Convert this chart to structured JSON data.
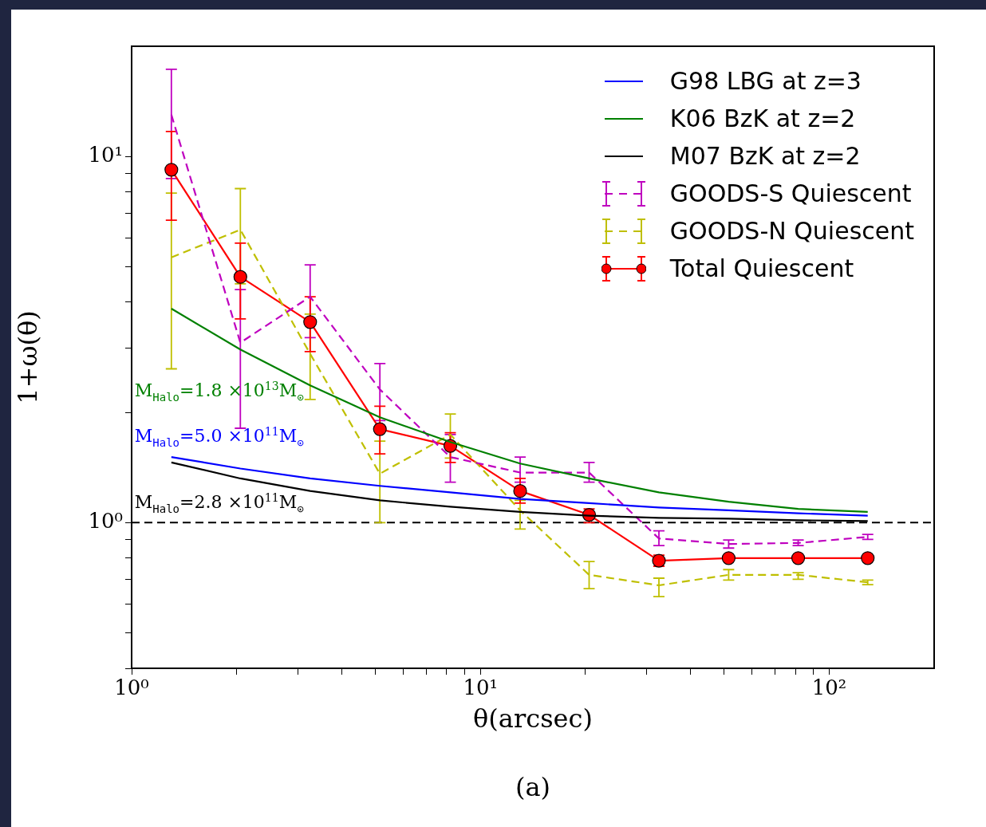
{
  "chart_data": {
    "type": "line",
    "xlabel": "θ(arcsec)",
    "ylabel": "1+ω(θ)",
    "log": "xy",
    "grid": false,
    "legend": "top right",
    "xlim": [
      1,
      200
    ],
    "ylim": [
      0.4,
      20
    ],
    "xticks": [
      {
        "value": 1,
        "label": "10⁰"
      },
      {
        "value": 2,
        "label": null
      },
      {
        "value": 3,
        "label": null
      },
      {
        "value": 4,
        "label": null
      },
      {
        "value": 5,
        "label": null
      },
      {
        "value": 6,
        "label": null
      },
      {
        "value": 7,
        "label": null
      },
      {
        "value": 8,
        "label": null
      },
      {
        "value": 9,
        "label": null
      },
      {
        "value": 10,
        "label": "10¹"
      },
      {
        "value": 20,
        "label": null
      },
      {
        "value": 30,
        "label": null
      },
      {
        "value": 40,
        "label": null
      },
      {
        "value": 50,
        "label": null
      },
      {
        "value": 60,
        "label": null
      },
      {
        "value": 70,
        "label": null
      },
      {
        "value": 80,
        "label": null
      },
      {
        "value": 90,
        "label": null
      },
      {
        "value": 100,
        "label": "10²"
      }
    ],
    "yticks": [
      {
        "value": 0.4,
        "label": null
      },
      {
        "value": 0.5,
        "label": null
      },
      {
        "value": 0.6,
        "label": null
      },
      {
        "value": 0.7,
        "label": null
      },
      {
        "value": 0.8,
        "label": null
      },
      {
        "value": 0.9,
        "label": null
      },
      {
        "value": 1,
        "label": "10⁰"
      },
      {
        "value": 2,
        "label": null
      },
      {
        "value": 3,
        "label": null
      },
      {
        "value": 4,
        "label": null
      },
      {
        "value": 5,
        "label": null
      },
      {
        "value": 6,
        "label": null
      },
      {
        "value": 7,
        "label": null
      },
      {
        "value": 8,
        "label": null
      },
      {
        "value": 9,
        "label": null
      },
      {
        "value": 10,
        "label": "10¹"
      }
    ],
    "x": [
      1.3,
      2.05,
      3.25,
      5.15,
      8.2,
      13,
      20.5,
      32.5,
      51.5,
      81.5,
      129
    ],
    "series": [
      {
        "name": "G98 LBG at z=3",
        "color": "#0000ff",
        "marker": "none",
        "line_style": "solid",
        "values": [
          1.51,
          1.405,
          1.32,
          1.26,
          1.21,
          1.16,
          1.13,
          1.1,
          1.08,
          1.06,
          1.045
        ]
      },
      {
        "name": "K06 BzK at z=2",
        "color": "#008000",
        "marker": "none",
        "line_style": "solid",
        "values": [
          3.84,
          2.97,
          2.37,
          1.94,
          1.66,
          1.45,
          1.32,
          1.21,
          1.14,
          1.09,
          1.07
        ]
      },
      {
        "name": "M07 BzK at z=2",
        "color": "#000000",
        "marker": "none",
        "line_style": "solid",
        "values": [
          1.46,
          1.32,
          1.22,
          1.15,
          1.105,
          1.07,
          1.045,
          1.03,
          1.025,
          1.015,
          1.01
        ]
      },
      {
        "name": "GOODS-S Quiescent",
        "color": "#bf00bf",
        "marker": "none",
        "line_style": "dashed",
        "values": [
          13,
          3.1,
          4.14,
          2.31,
          1.51,
          1.37,
          1.37,
          0.905,
          0.874,
          0.88,
          0.914
        ],
        "errors": [
          [
            8.7,
            17.3
          ],
          [
            1.81,
            4.33
          ],
          [
            3.2,
            5.06
          ],
          [
            1.9,
            2.72
          ],
          [
            1.29,
            1.74
          ],
          [
            1.29,
            1.51
          ],
          [
            1.29,
            1.46
          ],
          [
            0.865,
            0.95
          ],
          [
            0.852,
            0.896
          ],
          [
            0.865,
            0.896
          ],
          [
            0.9,
            0.928
          ]
        ]
      },
      {
        "name": "GOODS-N Quiescent",
        "color": "#bfbf00",
        "marker": "none",
        "line_style": "dashed",
        "values": [
          5.3,
          6.31,
          2.89,
          1.36,
          1.74,
          1.08,
          0.72,
          0.674,
          0.72,
          0.72,
          0.687
        ],
        "errors": [
          [
            2.63,
            7.94
          ],
          [
            4.49,
            8.17
          ],
          [
            2.17,
            3.71
          ],
          [
            1,
            1.67
          ],
          [
            1.5,
            1.98
          ],
          [
            0.96,
            1.15
          ],
          [
            0.66,
            0.783
          ],
          [
            0.628,
            0.705
          ],
          [
            0.697,
            0.744
          ],
          [
            0.7,
            0.73
          ],
          [
            0.677,
            0.697
          ]
        ]
      },
      {
        "name": "Total Quiescent",
        "color": "#ff0000",
        "marker": "circle",
        "line_style": "solid",
        "values": [
          9.2,
          4.69,
          3.53,
          1.8,
          1.62,
          1.22,
          1.05,
          0.787,
          0.8,
          0.8,
          0.8
        ],
        "errors": [
          [
            6.7,
            11.7
          ],
          [
            3.6,
            5.8
          ],
          [
            2.93,
            4.14
          ],
          [
            1.54,
            2.08
          ],
          [
            1.46,
            1.76
          ],
          [
            1.13,
            1.32
          ],
          [
            1,
            1.09
          ],
          [
            0.76,
            0.815
          ],
          null,
          null,
          null
        ]
      }
    ],
    "ref_lines": [
      {
        "axis": "y",
        "value": 1,
        "color": "#000000",
        "line_style": "dashed"
      }
    ],
    "annotations": [
      "M$_{Halo}$=1.8 ×10$^{13}$M$_{⊙}$",
      "M$_{Halo}$=5.0 ×10$^{11}$M$_{⊙}$",
      "M$_{Halo}$=2.8 ×10$^{11}$M$_{⊙}$",
      "(a)"
    ]
  }
}
